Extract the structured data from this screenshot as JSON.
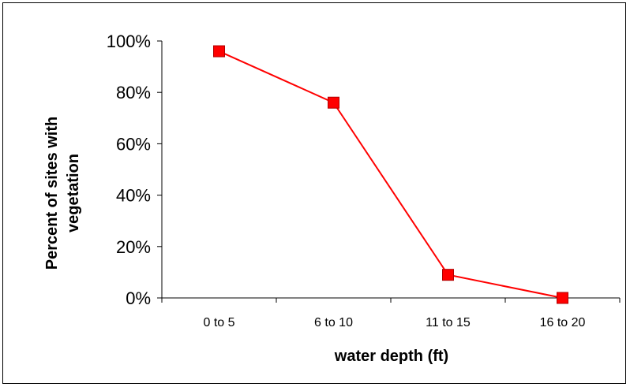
{
  "chart_data": {
    "type": "line",
    "title": "",
    "xlabel": "water depth (ft)",
    "ylabel_lines": [
      "Percent of sites with",
      "vegetation"
    ],
    "categories": [
      "0 to 5",
      "6 to 10",
      "11 to 15",
      "16 to 20"
    ],
    "series": [
      {
        "values": [
          96,
          76,
          9,
          0
        ]
      }
    ],
    "ylim": [
      0,
      100
    ],
    "yticks": [
      0,
      20,
      40,
      60,
      80,
      100
    ],
    "ytick_labels": [
      "0%",
      "20%",
      "40%",
      "60%",
      "80%",
      "100%"
    ],
    "grid": false,
    "legend": "none",
    "color": "#ff0000",
    "marker": "square"
  }
}
